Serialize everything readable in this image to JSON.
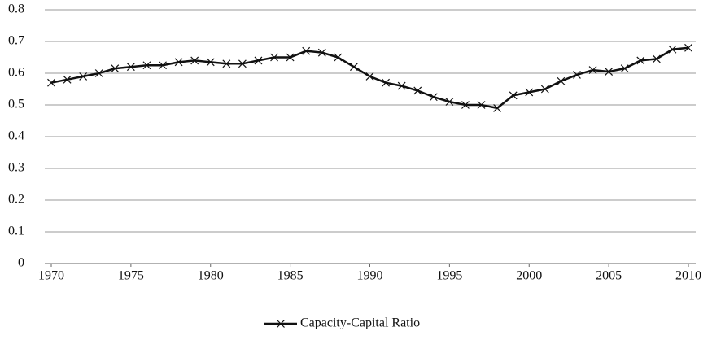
{
  "chart_data": {
    "type": "line",
    "x": [
      1970,
      1971,
      1972,
      1973,
      1974,
      1975,
      1976,
      1977,
      1978,
      1979,
      1980,
      1981,
      1982,
      1983,
      1984,
      1985,
      1986,
      1987,
      1988,
      1989,
      1990,
      1991,
      1992,
      1993,
      1994,
      1995,
      1996,
      1997,
      1998,
      1999,
      2000,
      2001,
      2002,
      2003,
      2004,
      2005,
      2006,
      2007,
      2008,
      2009,
      2010
    ],
    "series": [
      {
        "name": "Capacity-Capital Ratio",
        "color": "#111111",
        "values": [
          0.57,
          0.58,
          0.59,
          0.6,
          0.615,
          0.62,
          0.625,
          0.625,
          0.635,
          0.64,
          0.635,
          0.63,
          0.63,
          0.64,
          0.65,
          0.65,
          0.67,
          0.665,
          0.65,
          0.62,
          0.59,
          0.57,
          0.56,
          0.545,
          0.525,
          0.51,
          0.5,
          0.5,
          0.49,
          0.53,
          0.54,
          0.55,
          0.575,
          0.595,
          0.61,
          0.605,
          0.615,
          0.64,
          0.645,
          0.675,
          0.68
        ]
      }
    ],
    "xlim": [
      1970,
      2010
    ],
    "xticks": [
      1970,
      1975,
      1980,
      1985,
      1990,
      1995,
      2000,
      2005,
      2010
    ],
    "ylim": [
      0,
      0.8
    ],
    "yticks": [
      0,
      0.1,
      0.2,
      0.3,
      0.4,
      0.5,
      0.6,
      0.7,
      0.8
    ],
    "grid": true,
    "legend": "bottom"
  }
}
